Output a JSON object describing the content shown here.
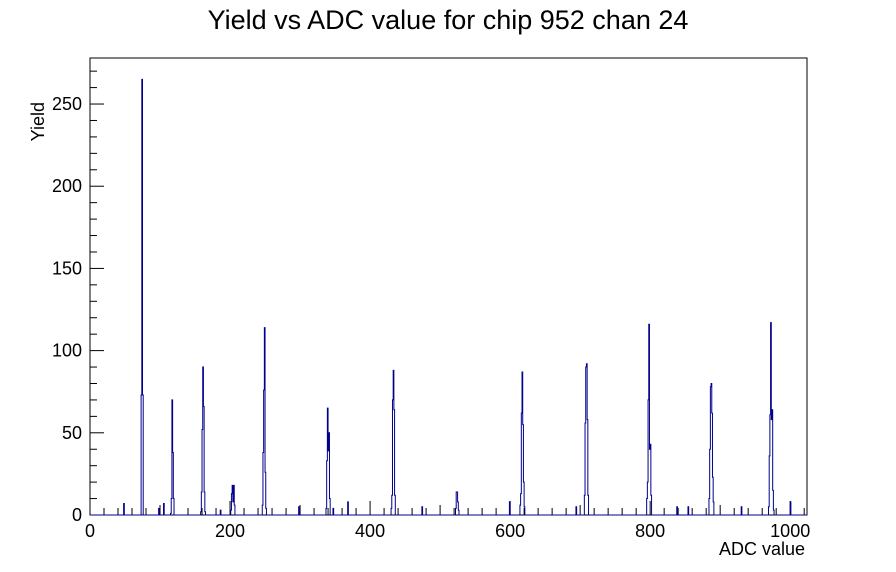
{
  "chart_data": {
    "type": "histogram",
    "title": "Yield vs ADC value for chip 952 chan 24",
    "xlabel": "ADC value",
    "ylabel": "Yield",
    "xlim": [
      0,
      1024
    ],
    "ylim": [
      0,
      278
    ],
    "xticks": [
      0,
      200,
      400,
      600,
      800,
      1000
    ],
    "yticks": [
      0,
      50,
      100,
      150,
      200,
      250
    ],
    "grid": false,
    "legend": "none",
    "line_color": "#00008b",
    "peaks": [
      {
        "x": 74,
        "values": [
          73,
          265,
          73
        ]
      },
      {
        "x": 117,
        "values": [
          1,
          10,
          70,
          38,
          10
        ]
      },
      {
        "x": 161,
        "values": [
          2,
          14,
          52,
          90,
          66,
          14,
          2
        ]
      },
      {
        "x": 204,
        "values": [
          3,
          13,
          18,
          8,
          18,
          6
        ]
      },
      {
        "x": 249,
        "values": [
          6,
          38,
          76,
          114,
          26,
          4
        ]
      },
      {
        "x": 340,
        "values": [
          4,
          33,
          65,
          39,
          50,
          10
        ]
      },
      {
        "x": 433,
        "values": [
          4,
          12,
          70,
          88,
          64,
          12
        ]
      },
      {
        "x": 524,
        "values": [
          4,
          14,
          14,
          8,
          3
        ]
      },
      {
        "x": 617,
        "values": [
          6,
          13,
          62,
          87,
          55,
          20,
          5
        ]
      },
      {
        "x": 709,
        "values": [
          12,
          56,
          90,
          92,
          58,
          12
        ]
      },
      {
        "x": 798,
        "values": [
          10,
          20,
          70,
          116,
          40,
          43,
          12
        ]
      },
      {
        "x": 887,
        "values": [
          10,
          40,
          78,
          80,
          62,
          23,
          8
        ]
      },
      {
        "x": 973,
        "values": [
          5,
          36,
          61,
          117,
          58,
          64,
          15,
          3
        ]
      }
    ],
    "isolated_bins": [
      {
        "x": 48,
        "y": 7
      },
      {
        "x": 98,
        "y": 4
      },
      {
        "x": 105,
        "y": 7
      },
      {
        "x": 186,
        "y": 3
      },
      {
        "x": 298,
        "y": 5
      },
      {
        "x": 347,
        "y": 4
      },
      {
        "x": 368,
        "y": 8
      },
      {
        "x": 474,
        "y": 5
      },
      {
        "x": 599,
        "y": 8
      },
      {
        "x": 694,
        "y": 5
      },
      {
        "x": 838,
        "y": 5
      },
      {
        "x": 854,
        "y": 5
      },
      {
        "x": 930,
        "y": 5
      },
      {
        "x": 1000,
        "y": 8
      }
    ]
  }
}
